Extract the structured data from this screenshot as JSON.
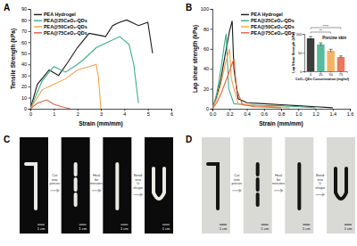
{
  "chart_data": [
    {
      "type": "line",
      "title": "A",
      "x_label": "Strain (mm/mm)",
      "y_label": "Tensile Strength (kPa)",
      "xlim": [
        0,
        6
      ],
      "xticks": [
        0,
        1,
        2,
        3,
        4,
        5,
        6
      ],
      "ylim": [
        0,
        90
      ],
      "yticks": [
        0,
        10,
        20,
        30,
        40,
        50,
        60,
        70,
        80,
        90
      ],
      "grid": false,
      "legend": "upper left",
      "series": [
        {
          "name": "PEA Hydrogel",
          "color": "#1a1a1a",
          "x": [
            0,
            0.3,
            0.8,
            1.2,
            1.6,
            2.0,
            2.5,
            3.0,
            3.2,
            3.5,
            3.8,
            4.1,
            4.6,
            5.0,
            5.2
          ],
          "values": [
            0,
            22,
            35,
            30,
            42,
            55,
            68,
            66,
            65,
            75,
            78,
            80,
            75,
            78,
            50
          ]
        },
        {
          "name": "PEA@25CeO₂-QDs",
          "color": "#3aae8c",
          "x": [
            0,
            0.5,
            1.0,
            1.5,
            2.0,
            2.3,
            2.8,
            3.3,
            3.8,
            4.2,
            4.4,
            4.6
          ],
          "values": [
            0,
            25,
            38,
            33,
            40,
            45,
            55,
            60,
            65,
            58,
            40,
            5
          ]
        },
        {
          "name": "PEA@50CeO₂-QDs",
          "color": "#f2a447",
          "x": [
            0,
            0.5,
            1.0,
            1.5,
            2.0,
            2.5,
            2.8,
            2.9,
            3.0
          ],
          "values": [
            0,
            17,
            22,
            27,
            35,
            38,
            40,
            28,
            0
          ]
        },
        {
          "name": "PEA@75CeO₂-QDs",
          "color": "#e5603f",
          "x": [
            0,
            0.3,
            0.7,
            1.0,
            1.3,
            1.7
          ],
          "values": [
            0,
            5,
            8,
            4,
            2,
            0
          ]
        }
      ]
    },
    {
      "type": "line",
      "title": "B",
      "x_label": "Strain (mm/mm)",
      "y_label": "Lap shear strength (kPa)",
      "xlim": [
        0,
        1.6
      ],
      "xticks": [
        {
          "value": 0,
          "label": "0.0"
        },
        0.2,
        0.4,
        0.6,
        0.8,
        {
          "value": 1,
          "label": "1.0"
        },
        1.2,
        1.4,
        1.6
      ],
      "ylim": [
        0,
        100
      ],
      "yticks": [
        0,
        20,
        40,
        60,
        80,
        100
      ],
      "grid": false,
      "legend": "upper center",
      "series": [
        {
          "name": "PEA Hydrogel",
          "color": "#1a1a1a",
          "x": [
            0,
            0.05,
            0.1,
            0.15,
            0.2,
            0.23,
            0.25,
            0.3,
            0.4,
            0.6,
            0.8,
            1.0,
            1.2,
            1.4
          ],
          "values": [
            0,
            12,
            30,
            55,
            78,
            88,
            40,
            10,
            6,
            5,
            4,
            3,
            2,
            1
          ]
        },
        {
          "name": "PEA@25CeO₂-QDs",
          "color": "#3aae8c",
          "x": [
            0,
            0.05,
            0.1,
            0.14,
            0.16,
            0.19,
            0.25,
            0.4,
            0.6,
            0.8,
            1.0,
            1.2
          ],
          "values": [
            0,
            15,
            40,
            65,
            75,
            20,
            5,
            4,
            3,
            3,
            2,
            1
          ]
        },
        {
          "name": "PEA@50CeO₂-QDs",
          "color": "#f2a447",
          "x": [
            0,
            0.05,
            0.1,
            0.15,
            0.2,
            0.22,
            0.3,
            0.5,
            0.7,
            0.9
          ],
          "values": [
            0,
            10,
            25,
            45,
            60,
            30,
            5,
            3,
            2,
            1
          ]
        },
        {
          "name": "PEA@75CeO₂-QDs",
          "color": "#e5603f",
          "x": [
            0,
            0.05,
            0.1,
            0.2,
            0.25,
            0.28,
            0.35,
            0.5,
            0.8
          ],
          "values": [
            0,
            6,
            15,
            38,
            50,
            20,
            4,
            2,
            1
          ]
        }
      ]
    },
    {
      "type": "bar",
      "title": "Porcine skin",
      "x_label": "CeO₂-QDs Concentration (mg/ml)",
      "y_label": "Lap Shear Strength (kPa)",
      "categories": [
        "0",
        "25",
        "50",
        "75"
      ],
      "values": [
        88,
        72,
        55,
        38
      ],
      "errors": [
        5,
        4,
        4,
        3
      ],
      "colors": [
        "#1a1a1a",
        "#3aae8c",
        "#f2a447",
        "#e5603f"
      ],
      "ylim": [
        0,
        100
      ],
      "yticks": [
        0,
        50,
        100
      ],
      "grid": false,
      "annotations": [
        "**",
        "****"
      ]
    }
  ],
  "photos": [
    {
      "label": "C",
      "steps": [
        "Cut into pieces",
        "Heal for minutes",
        "Bend into U shape"
      ],
      "scale_bar": "1 cm"
    },
    {
      "label": "D",
      "steps": [
        "Cut into pieces",
        "Heal for minutes",
        "Bend into U shape"
      ],
      "scale_bar": "1 cm"
    }
  ]
}
